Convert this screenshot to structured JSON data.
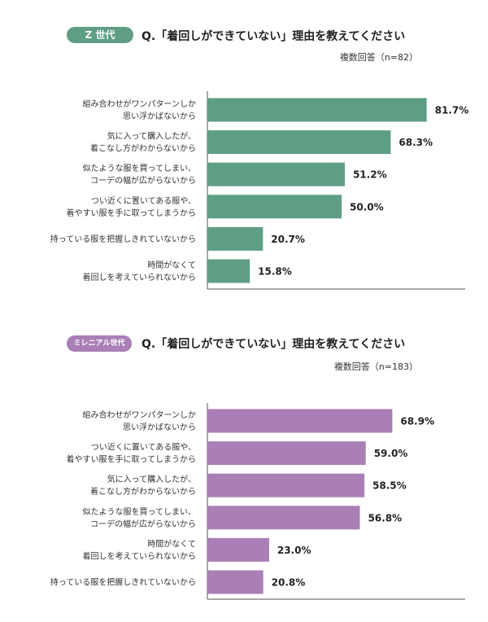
{
  "colors": {
    "gen_z": "#5e9e85",
    "millennial": "#a97fb6",
    "axis": "#555555"
  },
  "chart_data": [
    {
      "type": "bar",
      "orientation": "horizontal",
      "badge": "Z 世代",
      "title": "Q.「着回しができていない」理由を教えてください",
      "note": "複数回答（n=82）",
      "categories": [
        [
          "組み合わせがワンパターンしか",
          "思い浮かばないから"
        ],
        [
          "気に入って購入したが、",
          "着こなし方がわからないから"
        ],
        [
          "似たような服を買ってしまい、",
          "コーデの幅が広がらないから"
        ],
        [
          "つい近くに置いてある服や、",
          "着やすい服を手に取ってしまうから"
        ],
        [
          "持っている服を把握しきれていないから"
        ],
        [
          "時間がなくて",
          "着回しを考えていられないから"
        ]
      ],
      "values": [
        81.7,
        68.3,
        51.2,
        50.0,
        20.7,
        15.8
      ],
      "value_labels": [
        "81.7%",
        "68.3%",
        "51.2%",
        "50.0%",
        "20.7%",
        "15.8%"
      ],
      "xlim": [
        0,
        100
      ],
      "color": "#5e9e85"
    },
    {
      "type": "bar",
      "orientation": "horizontal",
      "badge": "ミレニアル世代",
      "title": "Q.「着回しができていない」理由を教えてください",
      "note": "複数回答（n=183）",
      "categories": [
        [
          "組み合わせがワンパターンしか",
          "思い浮かばないから"
        ],
        [
          "つい近くに置いてある服や、",
          "着やすい服を手に取ってしまうから"
        ],
        [
          "気に入って購入したが、",
          "着こなし方がわからないから"
        ],
        [
          "似たような服を買ってしまい、",
          "コーデの幅が広がらないから"
        ],
        [
          "時間がなくて",
          "着回しを考えていられないから"
        ],
        [
          "持っている服を把握しきれていないから"
        ]
      ],
      "values": [
        68.9,
        59.0,
        58.5,
        56.8,
        23.0,
        20.8
      ],
      "value_labels": [
        "68.9%",
        "59.0%",
        "58.5%",
        "56.8%",
        "23.0%",
        "20.8%"
      ],
      "xlim": [
        0,
        100
      ],
      "color": "#a97fb6"
    }
  ]
}
